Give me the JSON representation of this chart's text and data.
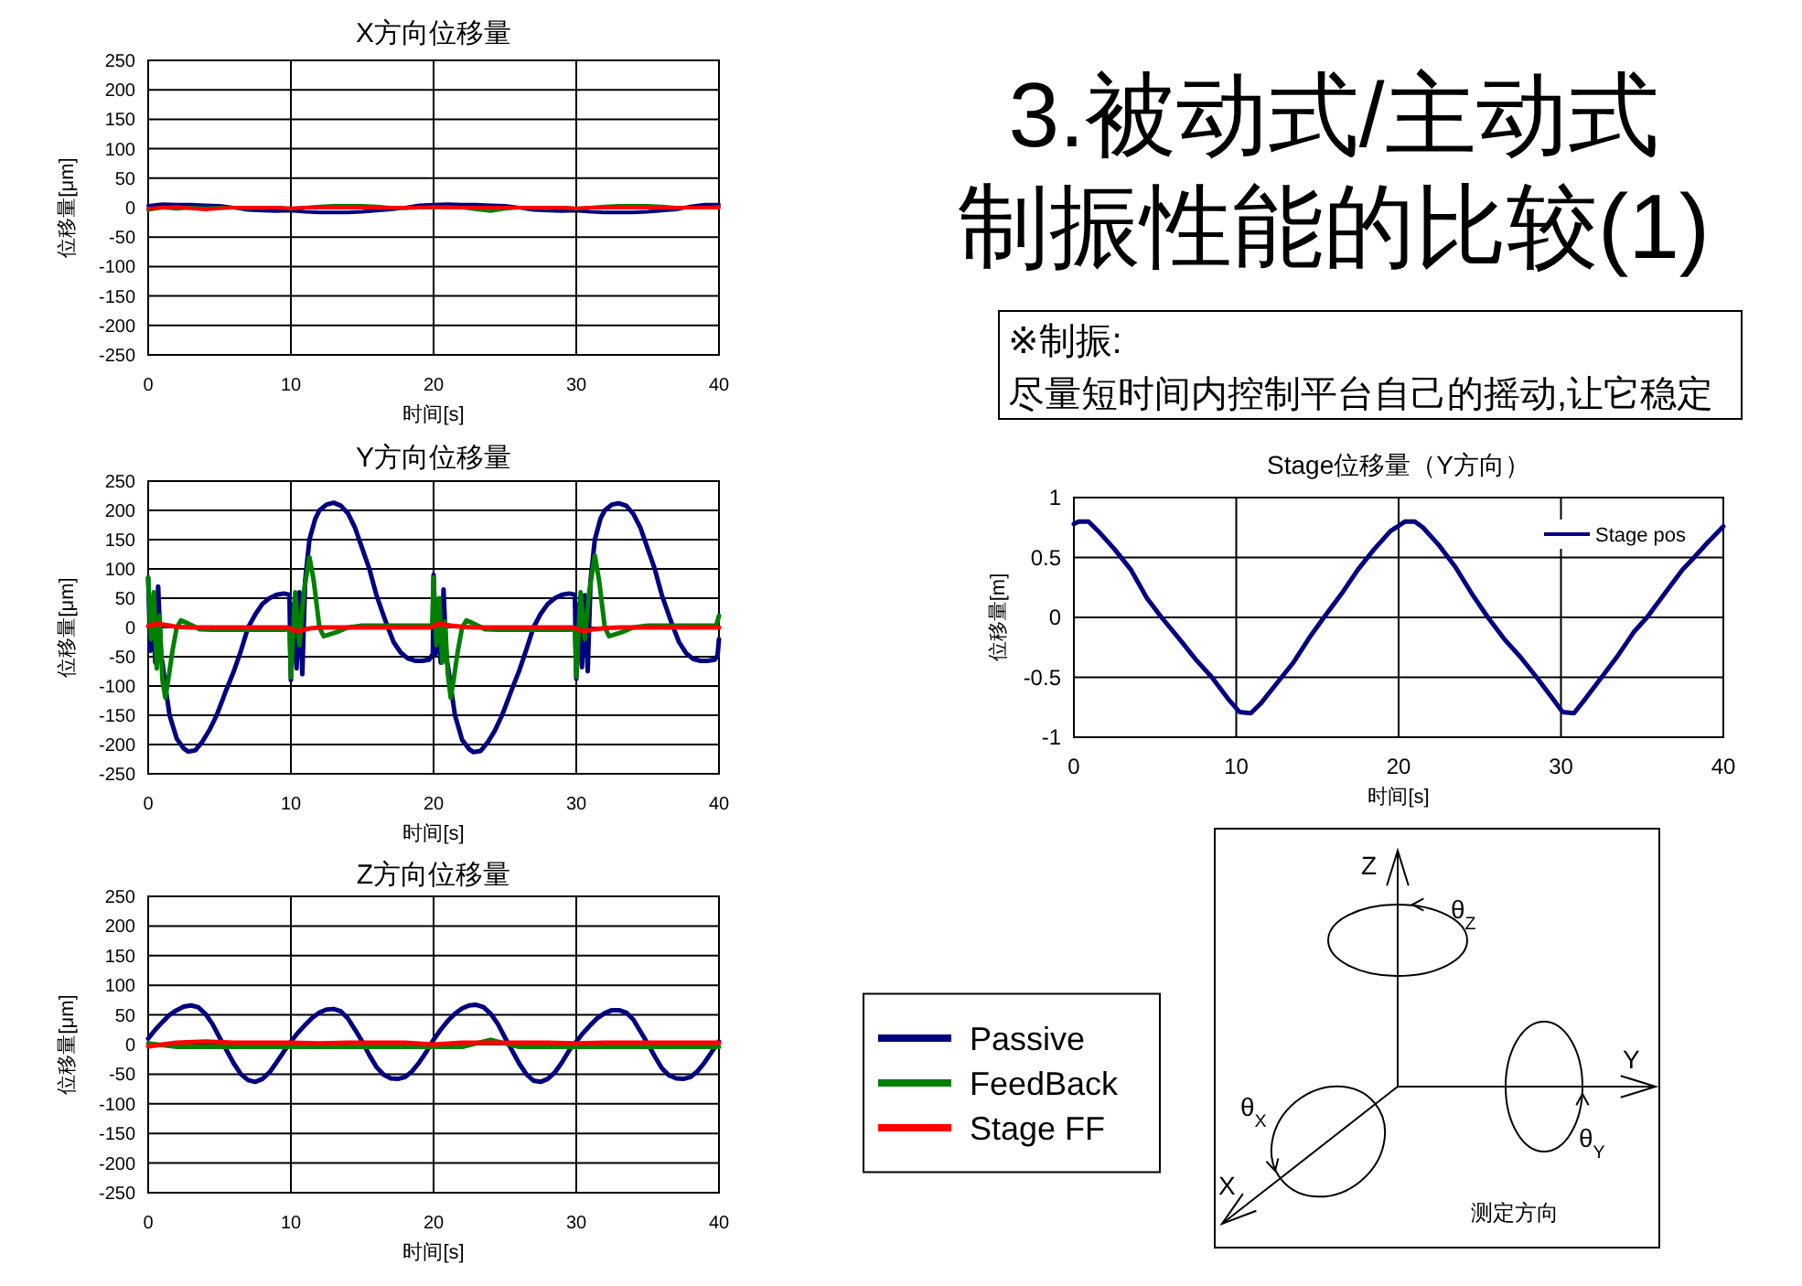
{
  "chart_data": [
    {
      "type": "other",
      "title": "3.被动式/主动式制振性能的比较(1)",
      "annotations": [
        "※制振:",
        "尽量短时间内控制平台自己的摇动,让它稳定"
      ]
    },
    {
      "type": "line",
      "title": "X方向位移量",
      "xlabel": "时间[s]",
      "ylabel": "位移量[μm]",
      "xlim": [
        0,
        40
      ],
      "ylim": [
        -250,
        250
      ],
      "xticks": [
        0,
        10,
        20,
        30,
        40
      ],
      "yticks": [
        -250,
        -200,
        -150,
        -100,
        -50,
        0,
        50,
        100,
        150,
        200,
        250
      ],
      "grid": true,
      "series": [
        {
          "color": "#000080",
          "x": [
            0,
            1,
            2,
            3,
            4,
            5,
            6,
            7,
            8,
            9,
            10,
            11,
            12,
            13,
            14,
            15,
            16,
            17,
            18,
            19,
            20,
            21,
            22,
            23,
            24,
            25,
            26,
            27,
            28,
            29,
            30,
            31,
            32,
            33,
            34,
            35,
            36,
            37,
            38,
            39,
            40
          ],
          "values": [
            3,
            6,
            5,
            5,
            4,
            3,
            0,
            -4,
            -5,
            -6,
            -5,
            -7,
            -8,
            -8,
            -8,
            -7,
            -5,
            -3,
            0,
            4,
            5,
            6,
            5,
            5,
            4,
            3,
            0,
            -4,
            -5,
            -6,
            -5,
            -7,
            -8,
            -8,
            -8,
            -7,
            -5,
            -3,
            2,
            5,
            5
          ]
        },
        {
          "color": "#008000",
          "x": [
            0,
            1,
            2,
            3,
            4,
            5,
            6,
            7,
            8,
            9,
            10,
            11,
            12,
            13,
            14,
            15,
            16,
            17,
            18,
            19,
            20,
            21,
            22,
            23,
            24,
            25,
            26,
            27,
            28,
            29,
            30,
            31,
            32,
            33,
            34,
            35,
            36,
            37,
            38,
            39,
            40
          ],
          "values": [
            -4,
            0,
            -2,
            0,
            -1,
            0,
            0,
            -1,
            0,
            0,
            -2,
            0,
            2,
            3,
            3,
            3,
            2,
            0,
            -1,
            0,
            0,
            1,
            0,
            -3,
            -6,
            -2,
            0,
            0,
            -1,
            0,
            -2,
            0,
            2,
            3,
            3,
            3,
            2,
            0,
            0,
            0,
            1
          ]
        },
        {
          "color": "#ff0000",
          "x": [
            0,
            1,
            2,
            3,
            4,
            5,
            6,
            7,
            8,
            9,
            10,
            11,
            12,
            13,
            14,
            15,
            16,
            17,
            18,
            19,
            20,
            21,
            22,
            23,
            24,
            25,
            26,
            27,
            28,
            29,
            30,
            31,
            32,
            33,
            34,
            35,
            36,
            37,
            38,
            39,
            40
          ],
          "values": [
            -2,
            0,
            1,
            -1,
            -3,
            -1,
            0,
            0,
            0,
            0,
            -1,
            0,
            0,
            0,
            0,
            0,
            0,
            0,
            0,
            0,
            1,
            0,
            0,
            0,
            0,
            0,
            0,
            0,
            0,
            0,
            -1,
            0,
            0,
            0,
            0,
            0,
            0,
            0,
            0,
            0,
            0
          ]
        }
      ]
    },
    {
      "type": "line",
      "title": "Y方向位移量",
      "xlabel": "时间[s]",
      "ylabel": "位移量[μm]",
      "xlim": [
        0,
        40
      ],
      "ylim": [
        -250,
        250
      ],
      "xticks": [
        0,
        10,
        20,
        30,
        40
      ],
      "yticks": [
        -250,
        -200,
        -150,
        -100,
        -50,
        0,
        50,
        100,
        150,
        200,
        250
      ],
      "grid": true,
      "series": [
        {
          "color": "#000080",
          "x": [
            0,
            0.15,
            0.3,
            0.5,
            0.7,
            0.9,
            1,
            1.2,
            1.5,
            2,
            2.5,
            2.8,
            3.3,
            3.8,
            4.3,
            4.8,
            5.5,
            6,
            6.5,
            7,
            7.5,
            8,
            8.5,
            9,
            9.5,
            9.9,
            10,
            10.2,
            10.4,
            10.6,
            10.8,
            11,
            11.3,
            11.7,
            12,
            12.5,
            13,
            13.5,
            14,
            14.5,
            15,
            15.5,
            16,
            16.5,
            16.8,
            17.2,
            17.7,
            18.2,
            18.7,
            19.2,
            19.7,
            19.95,
            20,
            20.15,
            20.3,
            20.5,
            20.7,
            20.9,
            21,
            21.2,
            21.5,
            22,
            22.5,
            22.8,
            23.3,
            23.8,
            24.3,
            24.8,
            25.5,
            26,
            26.5,
            27,
            27.5,
            28,
            28.5,
            29,
            29.5,
            29.9,
            30,
            30.2,
            30.4,
            30.6,
            30.8,
            31,
            31.3,
            31.7,
            32,
            32.5,
            33,
            33.5,
            34,
            34.5,
            35,
            35.5,
            36,
            36.5,
            36.8,
            37.2,
            37.7,
            38.2,
            38.7,
            39.2,
            39.7,
            39.9,
            40
          ],
          "values": [
            85,
            -40,
            40,
            -60,
            70,
            -50,
            -60,
            -100,
            -150,
            -190,
            -207,
            -212,
            -210,
            -195,
            -175,
            -150,
            -105,
            -75,
            -40,
            0,
            22,
            40,
            50,
            56,
            58,
            56,
            -90,
            40,
            -70,
            60,
            -80,
            80,
            150,
            185,
            200,
            210,
            213,
            208,
            195,
            170,
            135,
            100,
            55,
            20,
            0,
            -25,
            -43,
            -53,
            -57,
            -57,
            -55,
            -45,
            90,
            -45,
            40,
            -60,
            65,
            -55,
            -65,
            -100,
            -150,
            -192,
            -208,
            -213,
            -211,
            -196,
            -176,
            -150,
            -105,
            -74,
            -38,
            0,
            23,
            40,
            50,
            56,
            58,
            56,
            -88,
            40,
            -68,
            55,
            -75,
            80,
            150,
            186,
            200,
            210,
            212,
            208,
            194,
            170,
            135,
            100,
            55,
            20,
            0,
            -25,
            -44,
            -54,
            -57,
            -57,
            -55,
            -48,
            -20
          ]
        },
        {
          "color": "#008000",
          "x": [
            0,
            0.2,
            0.4,
            0.6,
            0.8,
            1,
            1.2,
            1.4,
            1.7,
            2,
            2.3,
            2.7,
            3.2,
            3.6,
            4.5,
            5.5,
            6.5,
            7.5,
            8.5,
            9.5,
            9.9,
            10,
            10.3,
            10.6,
            10.9,
            11.3,
            11.6,
            12,
            12.3,
            12.7,
            13.2,
            14,
            15,
            16,
            17,
            18,
            19,
            19.9,
            20,
            20.2,
            20.4,
            20.6,
            20.8,
            21,
            21.2,
            21.4,
            21.7,
            22,
            22.3,
            22.7,
            23.2,
            23.6,
            24.5,
            25.5,
            26.5,
            27.5,
            28.5,
            29.5,
            29.9,
            30,
            30.3,
            30.6,
            30.9,
            31.3,
            31.6,
            32,
            32.3,
            32.7,
            33.2,
            34,
            35,
            36,
            37,
            38,
            39,
            39.8,
            40
          ],
          "values": [
            85,
            -20,
            60,
            -70,
            20,
            -90,
            -120,
            -90,
            -40,
            0,
            12,
            8,
            2,
            -3,
            -4,
            -4,
            -4,
            -4,
            -4,
            -4,
            -3,
            -85,
            60,
            -30,
            60,
            120,
            80,
            0,
            -15,
            -12,
            -8,
            0,
            3,
            3,
            3,
            3,
            3,
            3,
            85,
            -30,
            50,
            -60,
            10,
            -80,
            -120,
            -90,
            -40,
            0,
            12,
            8,
            2,
            -3,
            -4,
            -4,
            -4,
            -4,
            -4,
            -4,
            -3,
            -84,
            60,
            -20,
            60,
            123,
            80,
            0,
            -15,
            -12,
            -8,
            0,
            3,
            3,
            3,
            3,
            3,
            3,
            20
          ]
        },
        {
          "color": "#ff0000",
          "x": [
            0,
            0.5,
            1,
            1.5,
            2,
            3,
            4,
            5,
            6,
            7,
            8,
            9,
            9.8,
            10.2,
            10.6,
            11,
            11.5,
            12,
            13,
            14,
            15,
            16,
            17,
            18,
            19,
            19.8,
            20.3,
            20.7,
            21.2,
            22,
            23,
            24,
            25,
            26,
            27,
            28,
            29,
            29.8,
            30.3,
            30.7,
            31.2,
            32,
            33,
            34,
            35,
            36,
            37,
            38,
            39,
            40
          ],
          "values": [
            2,
            6,
            5,
            3,
            1,
            0,
            0,
            0,
            0,
            0,
            0,
            0,
            0,
            -5,
            -6,
            -3,
            -1,
            0,
            0,
            0,
            0,
            0,
            0,
            0,
            0,
            0,
            6,
            5,
            3,
            1,
            0,
            0,
            0,
            0,
            0,
            0,
            0,
            0,
            -5,
            -6,
            -3,
            -1,
            0,
            0,
            0,
            0,
            0,
            0,
            0,
            0
          ]
        }
      ]
    },
    {
      "type": "line",
      "title": "Z方向位移量",
      "xlabel": "时间[s]",
      "ylabel": "位移量[μm]",
      "xlim": [
        0,
        40
      ],
      "ylim": [
        -250,
        250
      ],
      "xticks": [
        0,
        10,
        20,
        30,
        40
      ],
      "yticks": [
        -250,
        -200,
        -150,
        -100,
        -50,
        0,
        50,
        100,
        150,
        200,
        250
      ],
      "grid": true,
      "legend": "right",
      "series": [
        {
          "name": "Passive",
          "color": "#000080",
          "x": [
            0,
            0.5,
            1,
            1.5,
            2,
            2.5,
            3,
            3.5,
            4,
            4.5,
            5,
            5.5,
            6,
            6.5,
            7,
            7.5,
            8,
            8.5,
            9,
            9.5,
            10,
            10.5,
            11,
            11.5,
            12,
            12.5,
            13,
            13.5,
            14,
            14.5,
            15,
            15.5,
            16,
            16.5,
            17,
            17.5,
            18,
            18.5,
            19,
            19.5,
            20,
            20.5,
            21,
            21.5,
            22,
            22.5,
            23,
            23.5,
            24,
            24.5,
            25,
            25.5,
            26,
            26.5,
            27,
            27.5,
            28,
            28.5,
            29,
            29.5,
            30,
            30.5,
            31,
            31.5,
            32,
            32.5,
            33,
            33.5,
            34,
            34.5,
            35,
            35.5,
            36,
            36.5,
            37,
            37.5,
            38,
            38.5,
            39,
            39.5,
            40
          ],
          "values": [
            10,
            25,
            38,
            50,
            58,
            64,
            66,
            63,
            52,
            35,
            12,
            -10,
            -32,
            -50,
            -60,
            -63,
            -58,
            -47,
            -30,
            -12,
            5,
            20,
            33,
            45,
            54,
            59,
            60,
            56,
            44,
            25,
            5,
            -18,
            -38,
            -51,
            -57,
            -58,
            -55,
            -45,
            -30,
            -12,
            8,
            25,
            40,
            52,
            61,
            66,
            67,
            63,
            52,
            35,
            12,
            -10,
            -32,
            -50,
            -61,
            -63,
            -58,
            -47,
            -30,
            -10,
            5,
            20,
            33,
            45,
            53,
            58,
            58,
            54,
            42,
            22,
            2,
            -20,
            -40,
            -52,
            -57,
            -58,
            -55,
            -45,
            -30,
            -12,
            5
          ]
        },
        {
          "name": "FeedBack",
          "color": "#008000",
          "x": [
            0,
            2,
            4,
            6,
            8,
            10,
            12,
            14,
            16,
            18,
            20,
            22,
            24,
            26,
            28,
            30,
            32,
            34,
            36,
            38,
            40
          ],
          "values": [
            2,
            -4,
            -4,
            -4,
            -4,
            -4,
            -4,
            -4,
            -4,
            -4,
            -4,
            -4,
            8,
            -4,
            -4,
            -4,
            -4,
            -4,
            -4,
            -4,
            -4
          ]
        },
        {
          "name": "Stage FF",
          "color": "#ff0000",
          "x": [
            0,
            2,
            4,
            6,
            8,
            10,
            12,
            14,
            16,
            18,
            20,
            22,
            24,
            26,
            28,
            30,
            32,
            34,
            36,
            38,
            40
          ],
          "values": [
            -3,
            3,
            5,
            3,
            3,
            3,
            2,
            3,
            3,
            3,
            0,
            3,
            3,
            3,
            3,
            2,
            3,
            3,
            3,
            3,
            3
          ]
        }
      ]
    },
    {
      "type": "line",
      "title": "Stage位移量（Y方向）",
      "xlabel": "时间[s]",
      "ylabel": "位移量[m]",
      "xlim": [
        0,
        40
      ],
      "ylim": [
        -1,
        1
      ],
      "xticks": [
        0,
        10,
        20,
        30,
        40
      ],
      "yticks": [
        -1,
        -0.5,
        0,
        0.5,
        1
      ],
      "grid": true,
      "legend": "top right",
      "series": [
        {
          "name": "Stage pos",
          "color": "#000080",
          "x": [
            0,
            0.3,
            0.9,
            1.5,
            2.5,
            3.5,
            4.5,
            5.4,
            6.5,
            7.5,
            8.5,
            9.5,
            10.2,
            10.9,
            11.5,
            12.5,
            13.5,
            14.5,
            15.4,
            16.5,
            17.5,
            18.5,
            19.5,
            20.4,
            21,
            21.5,
            22.5,
            23.5,
            24.5,
            25.5,
            26.5,
            27.5,
            28.5,
            29.5,
            30.1,
            30.8,
            31.5,
            32.5,
            33.5,
            34.5,
            35.3,
            36.5,
            37.5,
            38.2,
            39,
            40
          ],
          "values": [
            0.78,
            0.8,
            0.8,
            0.72,
            0.57,
            0.4,
            0.16,
            0,
            -0.18,
            -0.35,
            -0.5,
            -0.68,
            -0.79,
            -0.8,
            -0.72,
            -0.55,
            -0.38,
            -0.17,
            0,
            0.2,
            0.4,
            0.57,
            0.72,
            0.8,
            0.8,
            0.75,
            0.6,
            0.42,
            0.2,
            0,
            -0.18,
            -0.33,
            -0.5,
            -0.68,
            -0.79,
            -0.8,
            -0.68,
            -0.5,
            -0.32,
            -0.12,
            0,
            0.22,
            0.4,
            0.5,
            0.62,
            0.76
          ]
        }
      ]
    },
    {
      "type": "other",
      "title": "测定方向",
      "annotations": [
        "Z",
        "θ$_{Z}$",
        "Y",
        "θ$_{Y}$",
        "X",
        "θ$_{X}$"
      ]
    }
  ]
}
